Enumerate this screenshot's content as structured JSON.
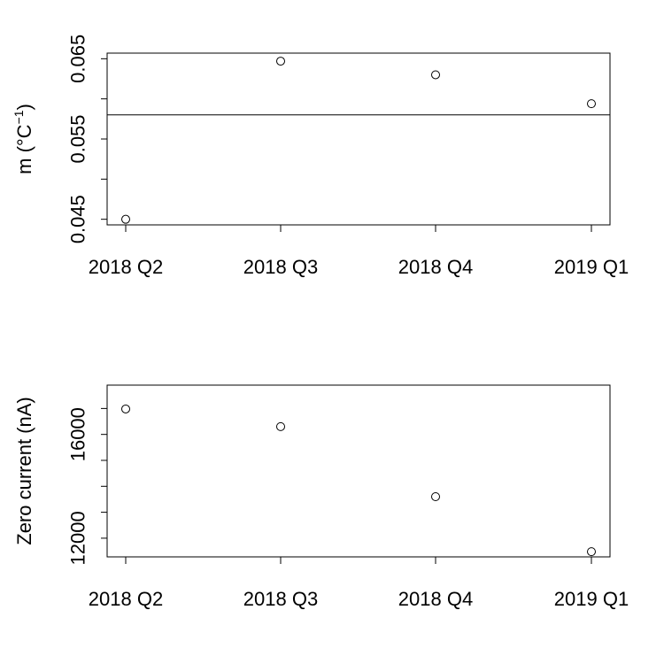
{
  "chart_data": [
    {
      "type": "scatter",
      "categories": [
        "2018 Q2",
        "2018 Q3",
        "2018 Q4",
        "2019 Q1"
      ],
      "values": [
        0.045,
        0.0647,
        0.063,
        0.0594
      ],
      "ylabel_main": "m  (°C",
      "ylabel_sup": "−1",
      "ylabel_close": ")",
      "yticks": [
        0.045,
        0.05,
        0.055,
        0.06,
        0.065
      ],
      "ytick_labels": [
        "0.045",
        "",
        "0.055",
        "",
        "0.065"
      ],
      "ylim": [
        0.0443,
        0.0657
      ],
      "hline": 0.058,
      "grid": false
    },
    {
      "type": "scatter",
      "categories": [
        "2018 Q2",
        "2018 Q3",
        "2018 Q4",
        "2019 Q1"
      ],
      "values": [
        16980,
        16300,
        13600,
        11480
      ],
      "ylabel": "Zero current  (nA)",
      "yticks": [
        12000,
        13000,
        14000,
        15000,
        16000,
        17000
      ],
      "ytick_labels": [
        "12000",
        "",
        "",
        "",
        "16000",
        ""
      ],
      "ylim": [
        11280,
        17900
      ],
      "grid": false
    }
  ]
}
